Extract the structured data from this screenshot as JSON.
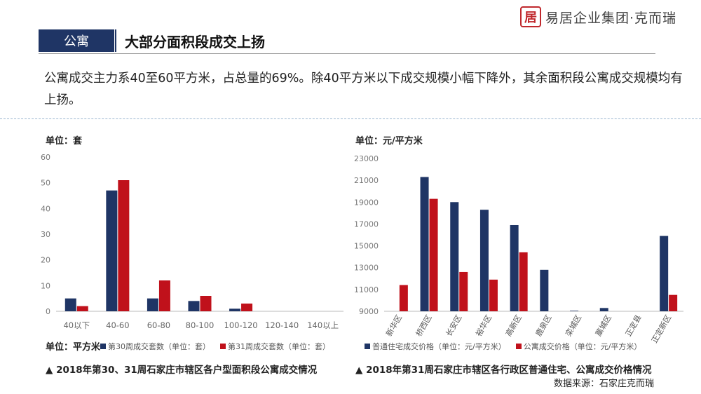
{
  "logo": {
    "seal": "居",
    "text": "易居企业集团·克而瑞"
  },
  "header": {
    "tag": "公寓",
    "title": "大部分面积段成交上扬"
  },
  "summary": "公寓成交主力系40至60平方米，占总量的69%。除40平方米以下成交规模小幅下降外，其余面积段公寓成交规模均有上扬。",
  "colors": {
    "navy": "#1f3565",
    "red": "#c0111b"
  },
  "chart_left": {
    "unit_top": "单位：套",
    "unit_bottom": "单位：平方米",
    "caption": "▲ 2018年第30、31周石家庄市辖区各户型面积段公寓成交情况"
  },
  "chart_right": {
    "unit_top": "单位：元/平方米",
    "caption": "▲ 2018年第31周石家庄市辖区各行政区普通住宅、公寓成交价格情况"
  },
  "source": "数据来源：石家庄克而瑞",
  "chart_data": [
    {
      "type": "bar",
      "categories": [
        "40以下",
        "40-60",
        "60-80",
        "80-100",
        "100-120",
        "120-140",
        "140以上"
      ],
      "series": [
        {
          "name": "第30周成交套数（单位：套）",
          "values": [
            5,
            47,
            5,
            4,
            1,
            0,
            0
          ],
          "color": "#1f3565"
        },
        {
          "name": "第31周成交套数（单位：套）",
          "values": [
            2,
            51,
            12,
            6,
            3,
            0,
            0
          ],
          "color": "#c0111b"
        }
      ],
      "ylim": [
        0,
        60
      ],
      "yticks": [
        0,
        10,
        20,
        30,
        40,
        50,
        60
      ],
      "grid": false,
      "legend": "bottom"
    },
    {
      "type": "bar",
      "categories": [
        "新华区",
        "桥西区",
        "长安区",
        "裕华区",
        "高新区",
        "鹿泉区",
        "栾城区",
        "藁城区",
        "正定县",
        "正定新区"
      ],
      "series": [
        {
          "name": "普通住宅成交价格（单位：元/平方米）",
          "values": [
            null,
            21300,
            19000,
            18300,
            16900,
            12800,
            9050,
            9300,
            null,
            15900
          ],
          "color": "#1f3565"
        },
        {
          "name": "公寓成交价格（单位：元/平方米）",
          "values": [
            11400,
            19300,
            12600,
            11900,
            14400,
            null,
            null,
            null,
            null,
            10500
          ],
          "color": "#c0111b"
        }
      ],
      "ylim": [
        9000,
        23000
      ],
      "yticks": [
        9000,
        11000,
        13000,
        15000,
        17000,
        19000,
        21000,
        23000
      ],
      "grid": false,
      "legend": "bottom"
    }
  ]
}
